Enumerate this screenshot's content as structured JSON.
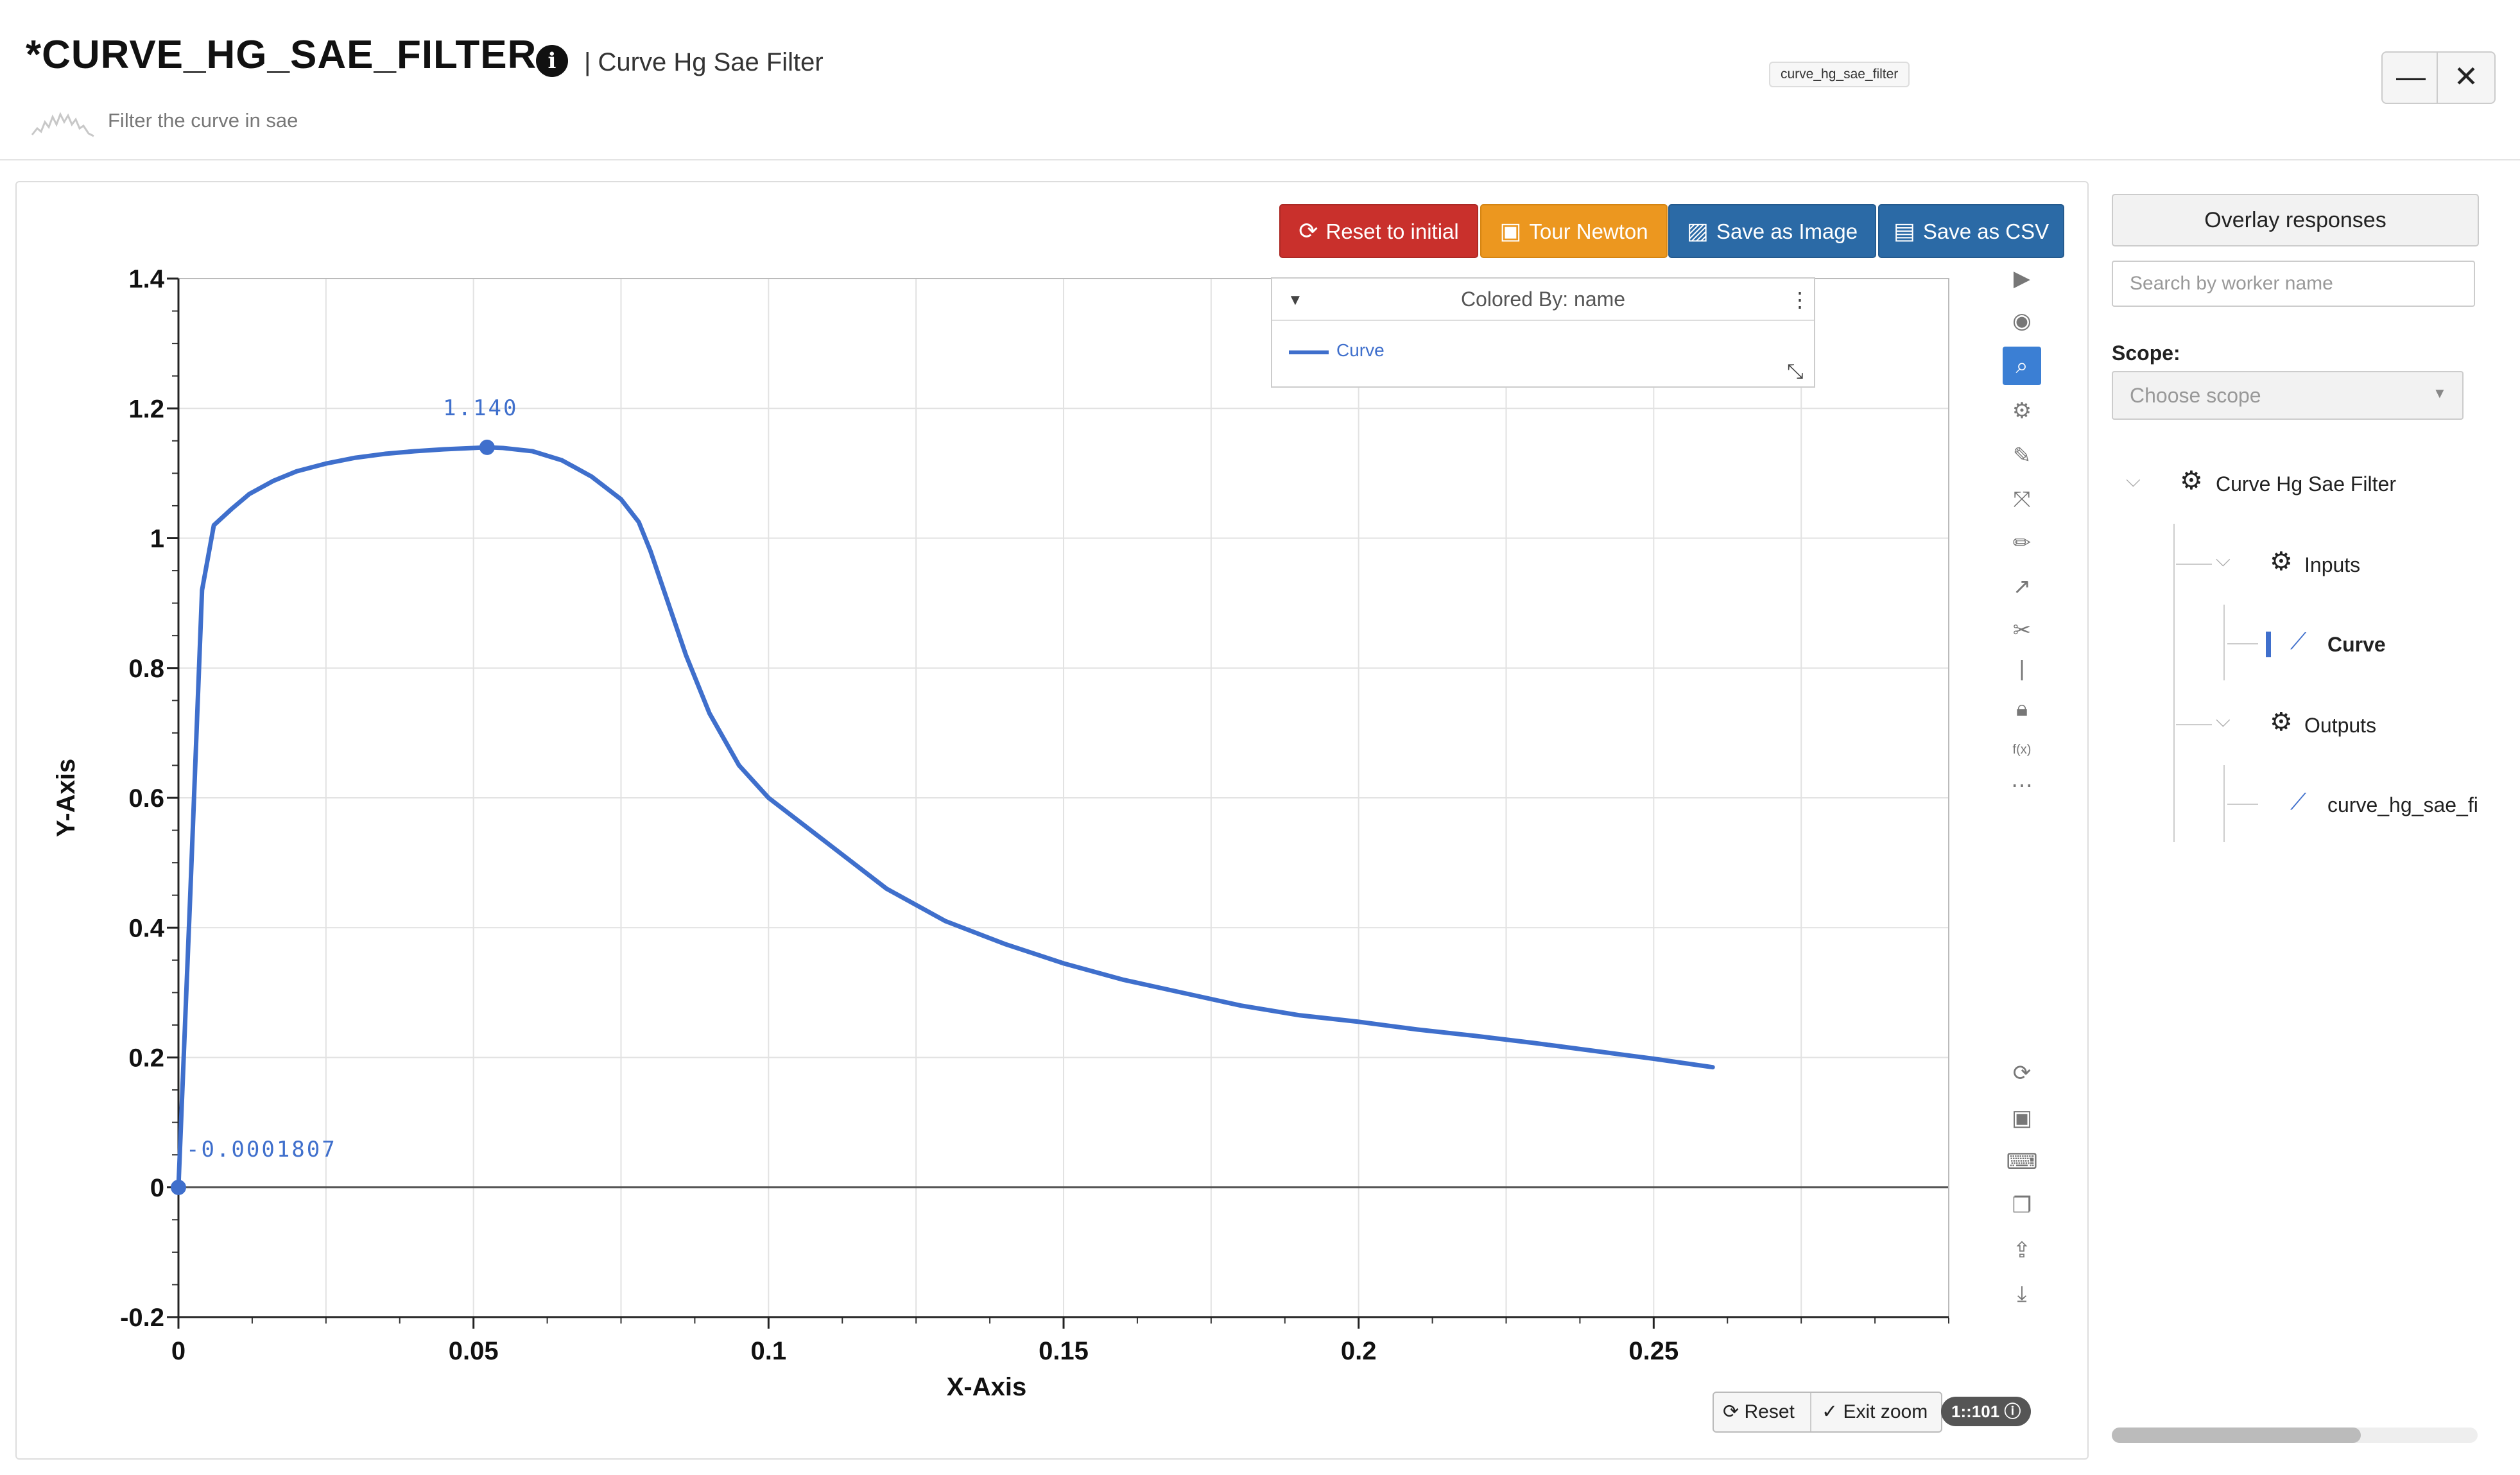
{
  "header": {
    "title": "*CURVE_HG_SAE_FILTER",
    "subtitle": "| Curve Hg Sae Filter",
    "description": "Filter the curve in sae",
    "tooltip": "curve_hg_sae_filter",
    "minimize_label": "—",
    "close_label": "✕"
  },
  "toolbar": {
    "reset_initial": "Reset to initial",
    "tour_newton": "Tour Newton",
    "save_image": "Save as Image",
    "save_csv": "Save as CSV"
  },
  "legend": {
    "title": "Colored By: name",
    "series_label": "Curve"
  },
  "bottom_controls": {
    "reset": "Reset",
    "exit_zoom": "Exit zoom",
    "ratio": "1::101"
  },
  "sidebar": {
    "overlay_button": "Overlay responses",
    "search_placeholder": "Search by worker name",
    "scope_label": "Scope:",
    "scope_placeholder": "Choose scope",
    "tree": {
      "root": "Curve Hg Sae Filter",
      "inputs": "Inputs",
      "input_item": "Curve",
      "outputs": "Outputs",
      "output_item": "curve_hg_sae_fil"
    }
  },
  "colors": {
    "series": "#3f6fcc",
    "reset_initial": "#c9302c",
    "tour_newton": "#ec971f",
    "save_buttons": "#2b6aa6"
  },
  "chart_data": {
    "type": "line",
    "xlabel": "X-Axis",
    "ylabel": "Y-Axis",
    "xlim": [
      0,
      0.3
    ],
    "ylim": [
      -0.2,
      1.4
    ],
    "x_ticks": [
      "0",
      "0.05",
      "0.1",
      "0.15",
      "0.2",
      "0.25"
    ],
    "y_ticks": [
      "-0.2",
      "0",
      "0.2",
      "0.4",
      "0.6",
      "0.8",
      "1",
      "1.2",
      "1.4"
    ],
    "grid": true,
    "series": [
      {
        "name": "Curve",
        "x": [
          0,
          0.002,
          0.004,
          0.006,
          0.009,
          0.012,
          0.016,
          0.02,
          0.025,
          0.03,
          0.035,
          0.04,
          0.045,
          0.05,
          0.0523,
          0.055,
          0.06,
          0.065,
          0.07,
          0.075,
          0.078,
          0.08,
          0.083,
          0.086,
          0.09,
          0.095,
          0.1,
          0.11,
          0.12,
          0.13,
          0.14,
          0.15,
          0.16,
          0.17,
          0.18,
          0.19,
          0.2,
          0.21,
          0.22,
          0.23,
          0.24,
          0.25,
          0.26
        ],
        "y": [
          -0.0001807,
          0.45,
          0.92,
          1.02,
          1.045,
          1.068,
          1.088,
          1.103,
          1.115,
          1.124,
          1.13,
          1.134,
          1.137,
          1.139,
          1.14,
          1.139,
          1.134,
          1.12,
          1.095,
          1.06,
          1.025,
          0.98,
          0.9,
          0.82,
          0.73,
          0.65,
          0.6,
          0.53,
          0.46,
          0.41,
          0.375,
          0.345,
          0.32,
          0.3,
          0.28,
          0.265,
          0.255,
          0.243,
          0.233,
          0.222,
          0.21,
          0.198,
          0.185
        ]
      }
    ],
    "annotations": [
      {
        "label": "1.140",
        "x": 0.0523,
        "y": 1.14
      },
      {
        "label": "-0.0001807",
        "x": 0,
        "y": -0.0001807
      }
    ]
  }
}
